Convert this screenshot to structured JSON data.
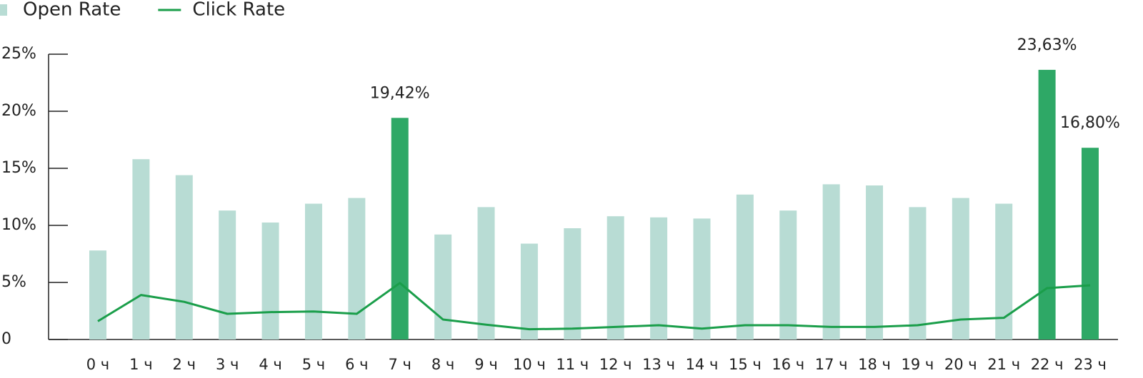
{
  "chart_data": {
    "type": "bar",
    "categories": [
      "0 ч",
      "1 ч",
      "2 ч",
      "3 ч",
      "4 ч",
      "5 ч",
      "6 ч",
      "7 ч",
      "8 ч",
      "9 ч",
      "10 ч",
      "11 ч",
      "12 ч",
      "13 ч",
      "14 ч",
      "15 ч",
      "16 ч",
      "17 ч",
      "18 ч",
      "19 ч",
      "20 ч",
      "21 ч",
      "22 ч",
      "23 ч"
    ],
    "series": [
      {
        "name": "Open Rate",
        "type": "bar",
        "color": "#b8dcd4",
        "colors": [
          "#b8dcd4",
          "#b8dcd4",
          "#b8dcd4",
          "#b8dcd4",
          "#b8dcd4",
          "#b8dcd4",
          "#b8dcd4",
          "#2ea866",
          "#b8dcd4",
          "#b8dcd4",
          "#b8dcd4",
          "#b8dcd4",
          "#b8dcd4",
          "#b8dcd4",
          "#b8dcd4",
          "#b8dcd4",
          "#b8dcd4",
          "#b8dcd4",
          "#b8dcd4",
          "#b8dcd4",
          "#b8dcd4",
          "#b8dcd4",
          "#2ea866",
          "#2ea866"
        ],
        "values": [
          7.8,
          15.8,
          14.4,
          11.3,
          10.25,
          11.9,
          12.4,
          19.42,
          9.2,
          11.6,
          8.4,
          9.75,
          10.8,
          10.7,
          10.6,
          12.7,
          11.3,
          13.6,
          13.5,
          11.6,
          12.4,
          11.9,
          23.63,
          16.8
        ],
        "value_labels": [
          null,
          null,
          null,
          null,
          null,
          null,
          null,
          "19,42%",
          null,
          null,
          null,
          null,
          null,
          null,
          null,
          null,
          null,
          null,
          null,
          null,
          null,
          null,
          "23,63%",
          "16,80%"
        ]
      },
      {
        "name": "Click Rate",
        "type": "line",
        "color": "#1a9e4a",
        "values": [
          1.6,
          3.9,
          3.3,
          2.25,
          2.4,
          2.45,
          2.25,
          4.95,
          1.75,
          1.3,
          0.9,
          0.95,
          1.1,
          1.25,
          0.95,
          1.25,
          1.25,
          1.1,
          1.1,
          1.25,
          1.75,
          1.9,
          4.5,
          4.75
        ]
      }
    ],
    "ylim": [
      0,
      25
    ],
    "yticks": [
      0,
      {
        "value": 5,
        "label": "5%"
      },
      {
        "value": 10,
        "label": "10%"
      },
      {
        "value": 15,
        "label": "15%"
      },
      {
        "value": 20,
        "label": "20%"
      },
      {
        "value": 25,
        "label": "25%"
      }
    ],
    "grid": false
  }
}
